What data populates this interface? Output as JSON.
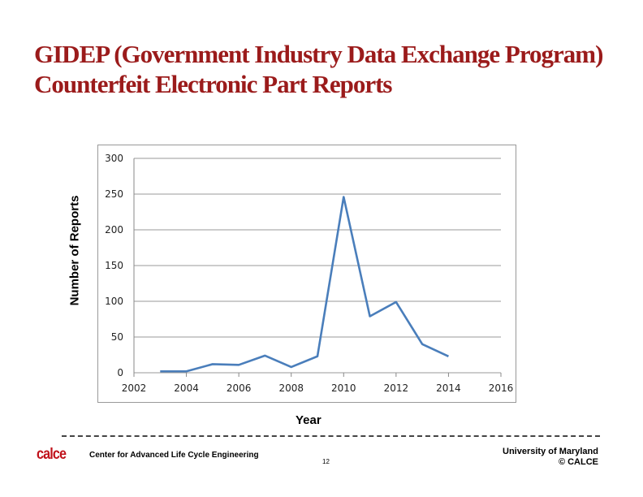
{
  "title": "GIDEP (Government Industry Data Exchange Program) Counterfeit Electronic Part Reports",
  "footer": {
    "logo": "calce",
    "center": "Center for Advanced Life Cycle Engineering",
    "page": "12",
    "university": "University of Maryland",
    "copyright": "© CALCE"
  },
  "chart_data": {
    "type": "line",
    "title": "",
    "xlabel": "Year",
    "ylabel": "Number of Reports",
    "xlim": [
      2002,
      2016
    ],
    "ylim": [
      0,
      300
    ],
    "xticks": [
      2002,
      2004,
      2006,
      2008,
      2010,
      2012,
      2014,
      2016
    ],
    "yticks": [
      0,
      50,
      100,
      150,
      200,
      250,
      300
    ],
    "grid": "horizontal",
    "color": "#4a7ebb",
    "x": [
      2003,
      2004,
      2005,
      2006,
      2007,
      2008,
      2009,
      2010,
      2011,
      2012,
      2013,
      2014
    ],
    "y": [
      2,
      2,
      12,
      11,
      24,
      8,
      23,
      246,
      79,
      99,
      40,
      23
    ]
  }
}
